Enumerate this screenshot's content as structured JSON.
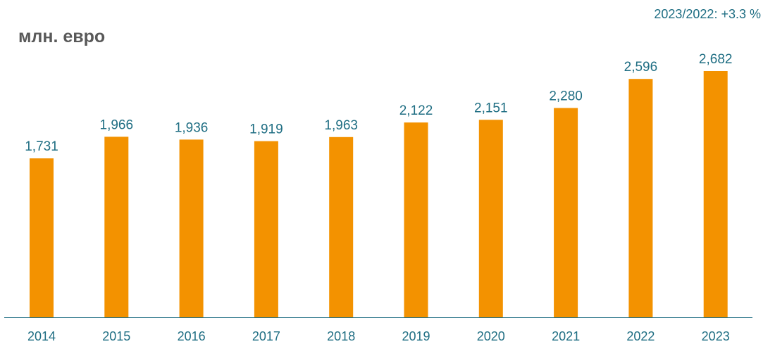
{
  "header": {
    "unit": "млн. евро",
    "change_note": "2023/2022: +3.3 %"
  },
  "colors": {
    "bar": "#f39200",
    "text": "#1f6e83",
    "axis": "#1f6e83",
    "unit_text": "#595959"
  },
  "chart_data": {
    "type": "bar",
    "categories": [
      "2014",
      "2015",
      "2016",
      "2017",
      "2018",
      "2019",
      "2020",
      "2021",
      "2022",
      "2023"
    ],
    "values": [
      1731,
      1966,
      1936,
      1919,
      1963,
      2122,
      2151,
      2280,
      2596,
      2682
    ],
    "value_labels": [
      "1,731",
      "1,966",
      "1,936",
      "1,919",
      "1,963",
      "2,122",
      "2,151",
      "2,280",
      "2,596",
      "2,682"
    ],
    "title": "",
    "xlabel": "",
    "ylabel": "млн. евро",
    "ylim": [
      0,
      2800
    ],
    "grid": false,
    "legend": "none"
  }
}
